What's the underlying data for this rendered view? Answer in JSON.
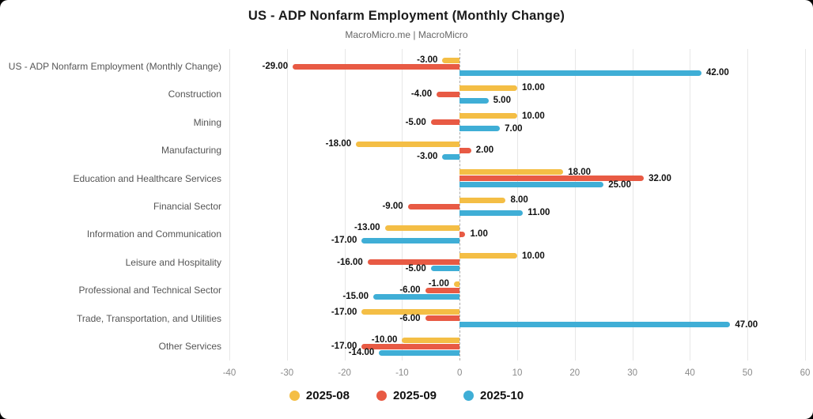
{
  "page": {
    "background": "#000000",
    "card_background": "#ffffff"
  },
  "chart_data": {
    "type": "bar",
    "orientation": "horizontal",
    "title": "US - ADP Nonfarm Employment (Monthly Change)",
    "subtitle": "MacroMicro.me | MacroMicro",
    "categories": [
      "US - ADP Nonfarm Employment (Monthly Change)",
      "Construction",
      "Mining",
      "Manufacturing",
      "Education and Healthcare Services",
      "Financial Sector",
      "Information and Communication",
      "Leisure and Hospitality",
      "Professional and Technical Sector",
      "Trade, Transportation, and Utilities",
      "Other Services"
    ],
    "series": [
      {
        "name": "2025-08",
        "color": "#F4BE45",
        "values": [
          -3,
          10,
          10,
          -18,
          18,
          8,
          -13,
          10,
          -1,
          -17,
          -10
        ]
      },
      {
        "name": "2025-09",
        "color": "#E85A44",
        "values": [
          -29,
          -4,
          -5,
          2,
          32,
          -9,
          1,
          -16,
          -6,
          -6,
          -17
        ]
      },
      {
        "name": "2025-10",
        "color": "#3FAED6",
        "values": [
          42,
          5,
          7,
          -3,
          25,
          11,
          -17,
          -5,
          -15,
          47,
          -14
        ]
      }
    ],
    "xlim": [
      -40,
      60
    ],
    "xticks": [
      -40,
      -30,
      -20,
      -10,
      0,
      10,
      20,
      30,
      40,
      50,
      60
    ],
    "grid": true,
    "zero_line": "dashed",
    "legend_position": "bottom",
    "value_label_format": "0.00"
  }
}
